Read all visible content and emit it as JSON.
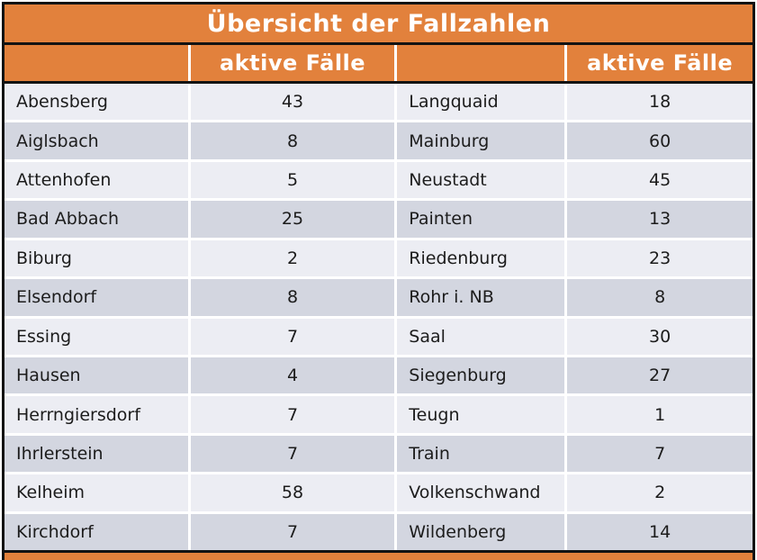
{
  "table": {
    "title": "Übersicht der Fallzahlen",
    "header": {
      "active_cases_left": "aktive Fälle",
      "active_cases_right": "aktive Fälle"
    },
    "rows": [
      {
        "left_name": "Abensberg",
        "left_value": "43",
        "right_name": "Langquaid",
        "right_value": "18"
      },
      {
        "left_name": "Aiglsbach",
        "left_value": "8",
        "right_name": "Mainburg",
        "right_value": "60"
      },
      {
        "left_name": "Attenhofen",
        "left_value": "5",
        "right_name": "Neustadt",
        "right_value": "45"
      },
      {
        "left_name": "Bad Abbach",
        "left_value": "25",
        "right_name": "Painten",
        "right_value": "13"
      },
      {
        "left_name": "Biburg",
        "left_value": "2",
        "right_name": "Riedenburg",
        "right_value": "23"
      },
      {
        "left_name": "Elsendorf",
        "left_value": "8",
        "right_name": "Rohr i. NB",
        "right_value": "8"
      },
      {
        "left_name": "Essing",
        "left_value": "7",
        "right_name": "Saal",
        "right_value": "30"
      },
      {
        "left_name": "Hausen",
        "left_value": "4",
        "right_name": "Siegenburg",
        "right_value": "27"
      },
      {
        "left_name": "Herrngiersdorf",
        "left_value": "7",
        "right_name": "Teugn",
        "right_value": "1"
      },
      {
        "left_name": "Ihrlerstein",
        "left_value": "7",
        "right_name": "Train",
        "right_value": "7"
      },
      {
        "left_name": "Kelheim",
        "left_value": "58",
        "right_name": "Volkenschwand",
        "right_value": "2"
      },
      {
        "left_name": "Kirchdorf",
        "left_value": "7",
        "right_name": "Wildenberg",
        "right_value": "14"
      }
    ]
  },
  "colors": {
    "orange": "#E2813C",
    "border_black": "#131313",
    "row_light": "#ECEDF3",
    "row_dark": "#D3D6E0",
    "header_text": "#FFFFFF",
    "body_text": "#1C1C1C"
  }
}
